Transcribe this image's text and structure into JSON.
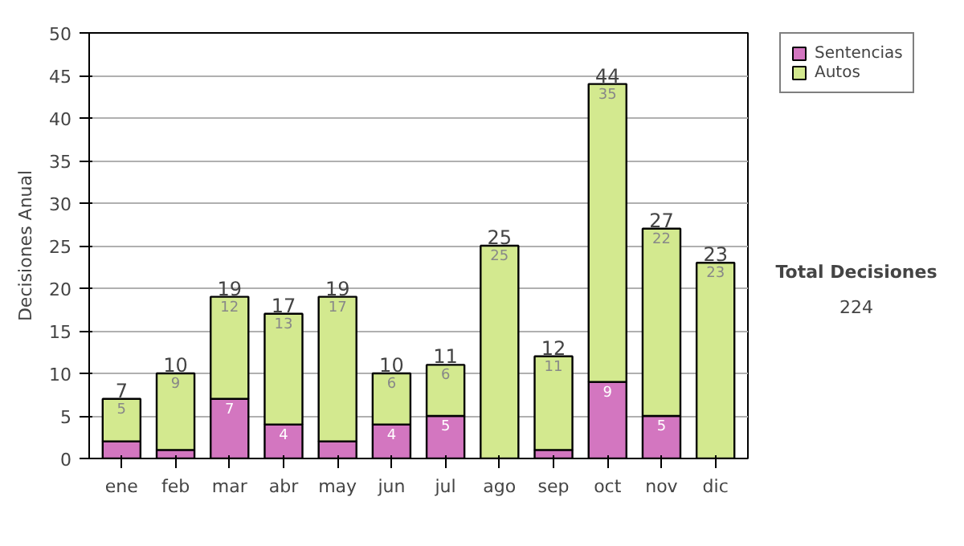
{
  "chart_data": {
    "type": "bar",
    "stacked": true,
    "ylabel": "Decisiones Anual",
    "categories": [
      "ene",
      "feb",
      "mar",
      "abr",
      "may",
      "jun",
      "jul",
      "ago",
      "sep",
      "oct",
      "nov",
      "dic"
    ],
    "series": [
      {
        "name": "Sentencias",
        "color": "#d376c0",
        "values": [
          2,
          1,
          7,
          4,
          2,
          4,
          5,
          0,
          1,
          9,
          5,
          0
        ],
        "value_labels": [
          null,
          null,
          "7",
          "4",
          null,
          "4",
          "5",
          null,
          null,
          "9",
          "5",
          null
        ]
      },
      {
        "name": "Autos",
        "color": "#d3e98f",
        "values": [
          5,
          9,
          12,
          13,
          17,
          6,
          6,
          25,
          11,
          35,
          22,
          23
        ],
        "value_labels": [
          "5",
          "9",
          "12",
          "13",
          "17",
          "6",
          "6",
          "25",
          "11",
          "35",
          "22",
          "23"
        ]
      }
    ],
    "totals": [
      "7",
      "10",
      "19",
      "17",
      "19",
      "10",
      "11",
      "25",
      "12",
      "44",
      "27",
      "23"
    ],
    "ylim": [
      0,
      50
    ],
    "yticks": [
      0,
      5,
      10,
      15,
      20,
      25,
      30,
      35,
      40,
      45,
      50
    ],
    "grid": "y",
    "legend": "right",
    "annotations": [
      "Total Decisiones",
      "224"
    ]
  }
}
